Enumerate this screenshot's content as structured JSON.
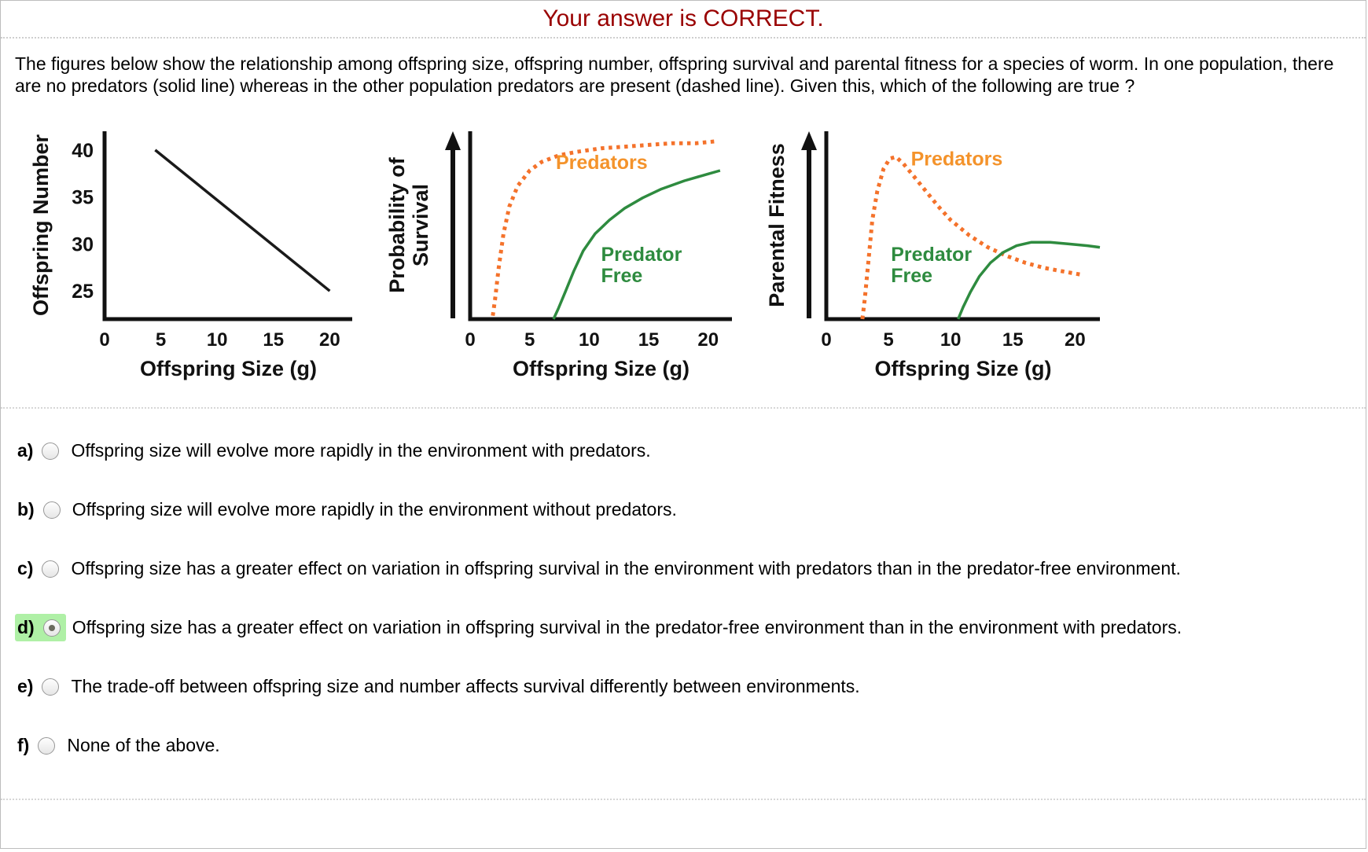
{
  "banner": {
    "text": "Your answer is CORRECT.",
    "color": "#990000"
  },
  "question": {
    "text": "The figures below show the relationship among offspring size, offspring number, offspring survival and parental fitness for a species of worm. In one population, there are no predators (solid line) whereas in the other population predators are present (dashed line). Given this, which of the following are true ?"
  },
  "colors": {
    "predators_line": "#f4722b",
    "predators_label": "#f4932b",
    "predator_free": "#2e8b3f",
    "axis": "#111111",
    "highlight": "#aff0a6"
  },
  "chart_data": [
    {
      "type": "line",
      "name": "offspring-number-vs-size",
      "xlabel": "Offspring Size (g)",
      "ylabel_lines": [
        "Offspring Number"
      ],
      "xlim": [
        0,
        22
      ],
      "ylim": [
        22,
        42
      ],
      "xticks": [
        0,
        5,
        10,
        15,
        20
      ],
      "yticks": [
        25,
        30,
        35,
        40
      ],
      "y_arrow": false,
      "series": [
        {
          "name": "size-number-tradeoff",
          "color": "#1a1a1a",
          "dash": "solid",
          "width": 3.5,
          "points": [
            [
              4.5,
              40
            ],
            [
              20,
              25
            ]
          ]
        }
      ],
      "annotations": []
    },
    {
      "type": "line",
      "name": "survival-vs-size",
      "xlabel": "Offspring Size (g)",
      "ylabel_lines": [
        "Probability of",
        "Survival"
      ],
      "xlim": [
        0,
        22
      ],
      "ylim": [
        0,
        110
      ],
      "xticks": [
        0,
        5,
        10,
        15,
        20
      ],
      "yticks": [],
      "y_arrow": true,
      "series": [
        {
          "name": "predators",
          "color": "#f4722b",
          "dash": "dotted",
          "width": 5,
          "points": [
            [
              1.9,
              2
            ],
            [
              2.1,
              12
            ],
            [
              2.4,
              30
            ],
            [
              2.8,
              50
            ],
            [
              3.3,
              66
            ],
            [
              4,
              78
            ],
            [
              5,
              87
            ],
            [
              6,
              92
            ],
            [
              7.5,
              96
            ],
            [
              9,
              98
            ],
            [
              11,
              100
            ],
            [
              13,
              101
            ],
            [
              15,
              102
            ],
            [
              17,
              103
            ],
            [
              19,
              103
            ],
            [
              20.5,
              104
            ]
          ]
        },
        {
          "name": "predator-free",
          "color": "#2e8b3f",
          "dash": "solid",
          "width": 3.5,
          "points": [
            [
              7,
              0
            ],
            [
              7.4,
              6
            ],
            [
              8,
              16
            ],
            [
              8.7,
              28
            ],
            [
              9.5,
              40
            ],
            [
              10.5,
              50
            ],
            [
              11.7,
              58
            ],
            [
              13,
              65
            ],
            [
              14.5,
              71
            ],
            [
              16,
              76
            ],
            [
              18,
              81
            ],
            [
              20,
              85
            ],
            [
              21,
              87
            ]
          ]
        }
      ],
      "annotations": [
        {
          "lines": [
            "Predators"
          ],
          "x": 7.2,
          "y": 88,
          "color": "#f4932b",
          "anchor": "start"
        },
        {
          "lines": [
            "Predator",
            "Free"
          ],
          "x": 11,
          "y": 34,
          "color": "#2e8b3f",
          "anchor": "start"
        }
      ]
    },
    {
      "type": "line",
      "name": "parental-fitness-vs-size",
      "xlabel": "Offspring Size (g)",
      "ylabel_lines": [
        "Parental Fitness"
      ],
      "xlim": [
        0,
        22
      ],
      "ylim": [
        0,
        110
      ],
      "xticks": [
        0,
        5,
        10,
        15,
        20
      ],
      "yticks": [],
      "y_arrow": true,
      "series": [
        {
          "name": "predators",
          "color": "#f4722b",
          "dash": "dotted",
          "width": 5,
          "points": [
            [
              2.9,
              0
            ],
            [
              3.1,
              12
            ],
            [
              3.4,
              35
            ],
            [
              3.7,
              58
            ],
            [
              4.1,
              75
            ],
            [
              4.6,
              88
            ],
            [
              5.1,
              94
            ],
            [
              5.6,
              95
            ],
            [
              6.2,
              91
            ],
            [
              7,
              84
            ],
            [
              8,
              75
            ],
            [
              9,
              66
            ],
            [
              10,
              58
            ],
            [
              11.5,
              49
            ],
            [
              13,
              42
            ],
            [
              14.5,
              37
            ],
            [
              16,
              33
            ],
            [
              17.5,
              30
            ],
            [
              19,
              28
            ],
            [
              20.5,
              26
            ]
          ]
        },
        {
          "name": "predator-free",
          "color": "#2e8b3f",
          "dash": "solid",
          "width": 3.5,
          "points": [
            [
              10.6,
              0
            ],
            [
              11,
              7
            ],
            [
              11.6,
              16
            ],
            [
              12.3,
              25
            ],
            [
              13.2,
              33
            ],
            [
              14.2,
              39
            ],
            [
              15.3,
              43
            ],
            [
              16.5,
              45
            ],
            [
              18,
              45
            ],
            [
              19.5,
              44
            ],
            [
              21,
              43
            ],
            [
              22,
              42
            ]
          ]
        }
      ],
      "annotations": [
        {
          "lines": [
            "Predators"
          ],
          "x": 6.8,
          "y": 90,
          "color": "#f4932b",
          "anchor": "start"
        },
        {
          "lines": [
            "Predator",
            "Free"
          ],
          "x": 5.2,
          "y": 34,
          "color": "#2e8b3f",
          "anchor": "start"
        }
      ]
    }
  ],
  "options": [
    {
      "label": "a)",
      "text": "Offspring size will evolve more rapidly in the environment with predators.",
      "selected": false
    },
    {
      "label": "b)",
      "text": "Offspring size will evolve more rapidly in the environment without predators.",
      "selected": false
    },
    {
      "label": "c)",
      "text": "Offspring size has a greater effect on variation in offspring survival in the environment with predators than in the predator-free environment.",
      "selected": false
    },
    {
      "label": "d)",
      "text": "Offspring size has a greater effect on variation in offspring survival in the predator-free environment than in the environment with predators.",
      "selected": true
    },
    {
      "label": "e)",
      "text": "The trade-off between offspring size and number affects survival differently between environments.",
      "selected": false
    },
    {
      "label": "f)",
      "text": "None of the above.",
      "selected": false
    }
  ]
}
